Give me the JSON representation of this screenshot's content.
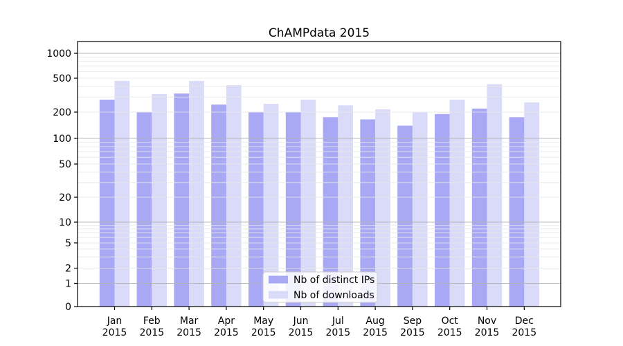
{
  "chart_data": {
    "type": "bar",
    "title": "ChAMPdata 2015",
    "categories": [
      "Jan 2015",
      "Feb 2015",
      "Mar 2015",
      "Apr 2015",
      "May 2015",
      "Jun 2015",
      "Jul 2015",
      "Aug 2015",
      "Sep 2015",
      "Oct 2015",
      "Nov 2015",
      "Dec 2015"
    ],
    "months": [
      "Jan",
      "Feb",
      "Mar",
      "Apr",
      "May",
      "Jun",
      "Jul",
      "Aug",
      "Sep",
      "Oct",
      "Nov",
      "Dec"
    ],
    "year": "2015",
    "series": [
      {
        "name": "Nb of distinct IPs",
        "color": "#a8a8f4",
        "values": [
          280,
          200,
          330,
          245,
          200,
          200,
          175,
          165,
          140,
          190,
          220,
          175
        ]
      },
      {
        "name": "Nb of downloads",
        "color": "#dadaf9",
        "values": [
          465,
          325,
          465,
          415,
          250,
          280,
          240,
          215,
          200,
          280,
          425,
          260
        ]
      }
    ],
    "yscale": "symlog",
    "y_ticks": [
      0,
      1,
      2,
      5,
      10,
      20,
      50,
      100,
      200,
      500,
      1000
    ],
    "ylim": [
      0,
      1400
    ],
    "xlabel": "",
    "ylabel": "",
    "grid": true,
    "grid_major_color": "#b3b3b3",
    "grid_minor_color": "#e8e8e8",
    "legend_position": "lower center",
    "axis_color": "#000000",
    "background_color": "#ffffff"
  }
}
